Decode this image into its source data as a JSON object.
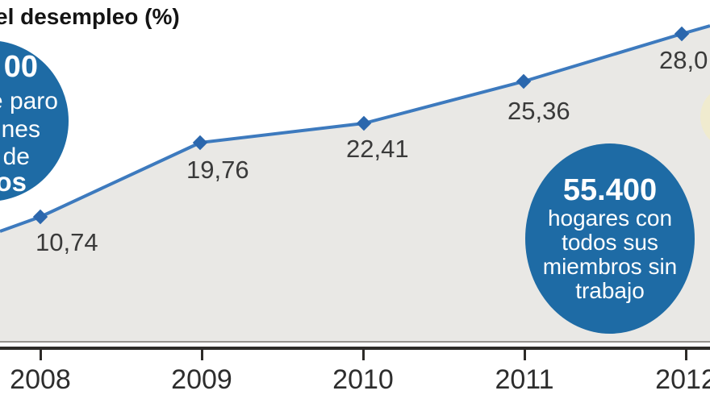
{
  "title": "el desempleo (%)",
  "colors": {
    "bubble_blue": "#1e6ba5",
    "line_blue": "#3d7abe",
    "marker_blue": "#2b67ad",
    "area_gray": "#e9e8e5",
    "axis_dark": "#2d2b28",
    "axis_light": "#97948e",
    "cream": "#f0ebcf",
    "label_text": "#3a3a3a",
    "bubble_text": "#ffffff"
  },
  "chart_data": {
    "type": "area",
    "title": "el desempleo (%)",
    "x": [
      2008,
      2009,
      2010,
      2011,
      2012
    ],
    "x_tick_labels": [
      "2008",
      "2009",
      "2010",
      "2011",
      "2012"
    ],
    "values": [
      10.74,
      19.76,
      22.41,
      25.36,
      28.0
    ],
    "point_labels": [
      "10,74",
      "19,76",
      "22,41",
      "25,36",
      "28,0"
    ],
    "xlabel": "",
    "ylabel": "",
    "grid": false,
    "legend_position": "none"
  },
  "annotations": {
    "left_bubble": {
      "lines": [
        {
          "text": "00"
        },
        {
          "text": "e paro"
        },
        {
          "text": "nes"
        },
        {
          "text": "de"
        },
        {
          "text": "os"
        }
      ]
    },
    "right_bubble": {
      "value": "55.400",
      "lines": [
        "hogares con",
        "todos sus",
        "miembros sin",
        "trabajo"
      ]
    }
  }
}
